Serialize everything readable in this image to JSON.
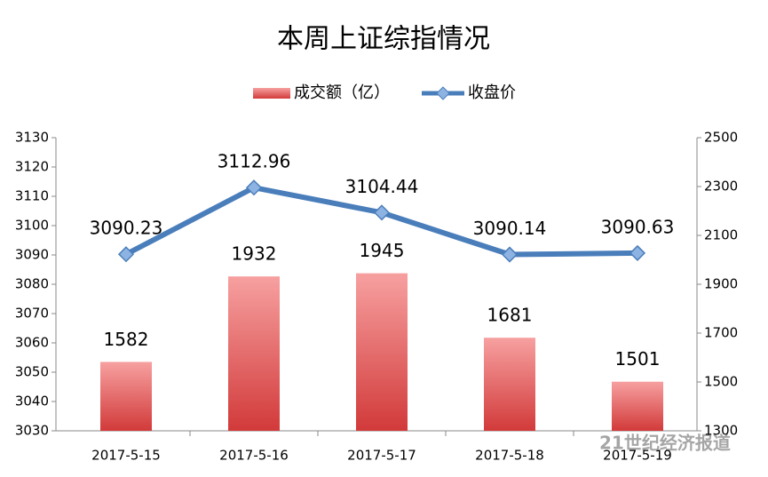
{
  "chart_data": {
    "type": "bar-line",
    "title": "本周上证综指情况",
    "categories": [
      "2017-5-15",
      "2017-5-16",
      "2017-5-17",
      "2017-5-18",
      "2017-5-19"
    ],
    "series": [
      {
        "name": "成交额（亿）",
        "type": "bar",
        "color": "#e05a5a",
        "axis": "y2",
        "values": [
          1582,
          1932,
          1945,
          1681,
          1501
        ]
      },
      {
        "name": "收盘价",
        "type": "line",
        "color": "#4a7ebb",
        "axis": "y",
        "values": [
          3090.23,
          3112.96,
          3104.44,
          3090.14,
          3090.63
        ]
      }
    ],
    "ylim": [
      3030,
      3130
    ],
    "yticks": [
      3030,
      3040,
      3050,
      3060,
      3070,
      3080,
      3090,
      3100,
      3110,
      3120,
      3130
    ],
    "y2lim": [
      1300,
      2500
    ],
    "y2ticks": [
      1300,
      1500,
      1700,
      1900,
      2100,
      2300,
      2500
    ],
    "legend": "top",
    "grid": false,
    "annotations": [
      "21世纪经济报道"
    ]
  }
}
